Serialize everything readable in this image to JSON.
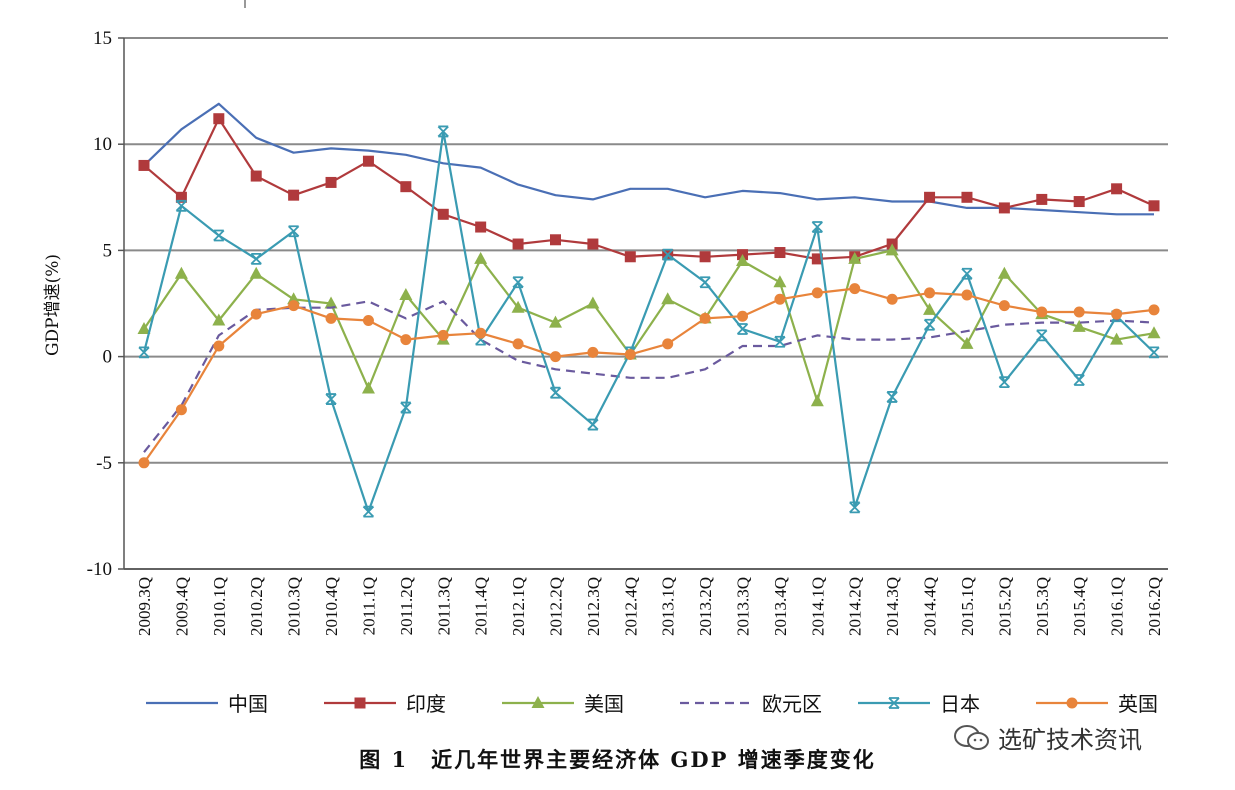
{
  "chart_data": {
    "type": "line",
    "title": "",
    "caption": "图 1　近几年世界主要经济体 GDP 增速季度变化",
    "xlabel": "",
    "ylabel": "GDP增速(%)",
    "ylim": [
      -10,
      15
    ],
    "yticks": [
      15,
      10,
      5,
      0,
      -5,
      -10
    ],
    "grid": true,
    "legend_position": "bottom",
    "categories": [
      "2009.3Q",
      "2009.4Q",
      "2010.1Q",
      "2010.2Q",
      "2010.3Q",
      "2010.4Q",
      "2011.1Q",
      "2011.2Q",
      "2011.3Q",
      "2011.4Q",
      "2012.1Q",
      "2012.2Q",
      "2012.3Q",
      "2012.4Q",
      "2013.1Q",
      "2013.2Q",
      "2013.3Q",
      "2013.4Q",
      "2014.1Q",
      "2014.2Q",
      "2014.3Q",
      "2014.4Q",
      "2015.1Q",
      "2015.2Q",
      "2015.3Q",
      "2015.4Q",
      "2016.1Q",
      "2016.2Q"
    ],
    "series": [
      {
        "name": "中国",
        "color": "#4a6fb5",
        "marker": "none",
        "dash": false,
        "values": [
          9.0,
          10.7,
          11.9,
          10.3,
          9.6,
          9.8,
          9.7,
          9.5,
          9.1,
          8.9,
          8.1,
          7.6,
          7.4,
          7.9,
          7.9,
          7.5,
          7.8,
          7.7,
          7.4,
          7.5,
          7.3,
          7.3,
          7.0,
          7.0,
          6.9,
          6.8,
          6.7,
          6.7
        ]
      },
      {
        "name": "印度",
        "color": "#b03a3c",
        "marker": "square",
        "dash": false,
        "values": [
          9.0,
          7.5,
          11.2,
          8.5,
          7.6,
          8.2,
          9.2,
          8.0,
          6.7,
          6.1,
          5.3,
          5.5,
          5.3,
          4.7,
          4.8,
          4.7,
          4.8,
          4.9,
          4.6,
          4.7,
          5.3,
          7.5,
          7.5,
          7.0,
          7.4,
          7.3,
          7.9,
          7.1
        ]
      },
      {
        "name": "美国",
        "color": "#8db14c",
        "marker": "triangle",
        "dash": false,
        "values": [
          1.3,
          3.9,
          1.7,
          3.9,
          2.7,
          2.5,
          -1.5,
          2.9,
          0.8,
          4.6,
          2.3,
          1.6,
          2.5,
          0.1,
          2.7,
          1.8,
          4.5,
          3.5,
          -2.1,
          4.6,
          5.0,
          2.2,
          0.6,
          3.9,
          2.0,
          1.4,
          0.8,
          1.1
        ]
      },
      {
        "name": "欧元区",
        "color": "#6a5a9e",
        "marker": "none",
        "dash": true,
        "values": [
          -4.5,
          -2.3,
          1.0,
          2.2,
          2.3,
          2.3,
          2.6,
          1.8,
          2.6,
          0.8,
          -0.2,
          -0.6,
          -0.8,
          -1.0,
          -1.0,
          -0.6,
          0.5,
          0.5,
          1.0,
          0.8,
          0.8,
          0.9,
          1.2,
          1.5,
          1.6,
          1.6,
          1.7,
          1.6
        ]
      },
      {
        "name": "日本",
        "color": "#3a9bb2",
        "marker": "asterisk",
        "dash": false,
        "values": [
          0.2,
          7.1,
          5.7,
          4.6,
          5.9,
          -2.0,
          -7.3,
          -2.4,
          10.6,
          0.8,
          3.5,
          -1.7,
          -3.2,
          0.2,
          4.8,
          3.5,
          1.3,
          0.7,
          6.1,
          -7.1,
          -1.9,
          1.5,
          3.9,
          -1.2,
          1.0,
          -1.1,
          1.9,
          0.2
        ]
      },
      {
        "name": "英国",
        "color": "#e8843b",
        "marker": "circle",
        "dash": false,
        "values": [
          -5.0,
          -2.5,
          0.5,
          2.0,
          2.4,
          1.8,
          1.7,
          0.8,
          1.0,
          1.1,
          0.6,
          0.0,
          0.2,
          0.1,
          0.6,
          1.8,
          1.9,
          2.7,
          3.0,
          3.2,
          2.7,
          3.0,
          2.9,
          2.4,
          2.1,
          2.1,
          2.0,
          2.2
        ]
      }
    ]
  },
  "watermark": "选矿技术资讯"
}
